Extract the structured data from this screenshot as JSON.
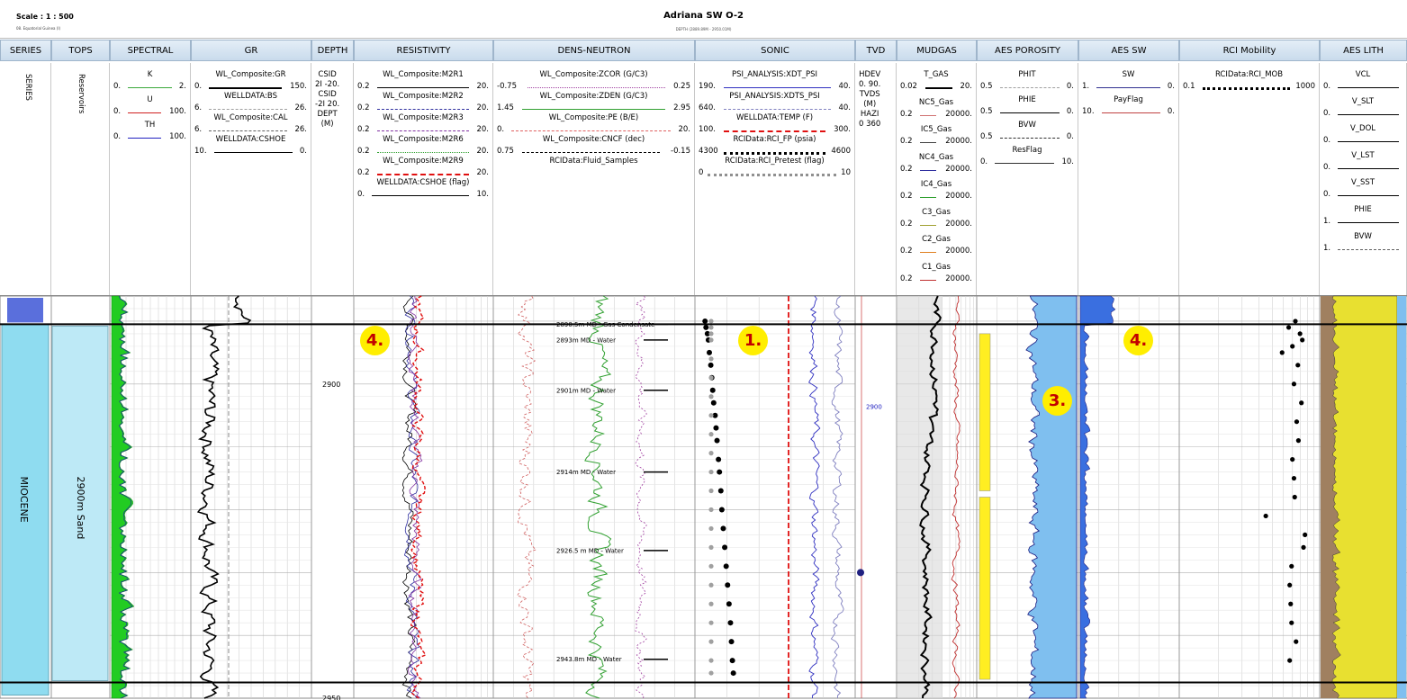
{
  "header": {
    "scale": "Scale : 1 : 500",
    "scale_sub": "08. Equatorial Guinea (I)",
    "title": "Adriana SW O-2",
    "subtitle": "DEPTH (2889.89M - 2950.01M)"
  },
  "tracks": [
    {
      "name": "SERIES"
    },
    {
      "name": "TOPS"
    },
    {
      "name": "SPECTRAL"
    },
    {
      "name": "GR"
    },
    {
      "name": "DEPTH"
    },
    {
      "name": "RESISTIVITY"
    },
    {
      "name": "DENS-NEUTRON"
    },
    {
      "name": "SONIC"
    },
    {
      "name": "TVD"
    },
    {
      "name": "MUDGAS"
    },
    {
      "name": "AES POROSITY"
    },
    {
      "name": "AES SW"
    },
    {
      "name": "RCI Mobility"
    },
    {
      "name": "AES LITH"
    }
  ],
  "legend": {
    "series_label": "SERIES",
    "tops_label": "Reservoirs",
    "spectral": [
      {
        "name": "K",
        "min": "0.",
        "max": "2.",
        "color": "#3aa83a",
        "style": "solid"
      },
      {
        "name": "U",
        "min": "0.",
        "max": "100.",
        "color": "#d02020",
        "style": "solid"
      },
      {
        "name": "TH",
        "min": "0.",
        "max": "100.",
        "color": "#2020c0",
        "style": "solid"
      }
    ],
    "gr": [
      {
        "name": "WL_Composite:GR",
        "min": "0.",
        "max": "150.",
        "color": "#000000",
        "style": "solid",
        "width": 2
      },
      {
        "name": "WELLDATA:BS",
        "min": "6.",
        "max": "26.",
        "color": "#a0a0a0",
        "style": "dashed"
      },
      {
        "name": "WL_Composite:CAL",
        "min": "6.",
        "max": "26.",
        "color": "#606060",
        "style": "dashed"
      },
      {
        "name": "WELLDATA:CSHOE",
        "min": "10.",
        "max": "0.",
        "color": "#000000",
        "style": "solid"
      }
    ],
    "depth_lines": [
      "CSID",
      "2I -20.",
      "CSID",
      "-2I 20.",
      "DEPT",
      "(M)"
    ],
    "resistivity": [
      {
        "name": "WL_Composite:M2R1",
        "min": "0.2",
        "max": "20.",
        "color": "#000000",
        "style": "solid"
      },
      {
        "name": "WL_Composite:M2R2",
        "min": "0.2",
        "max": "20.",
        "color": "#3030a0",
        "style": "dashed"
      },
      {
        "name": "WL_Composite:M2R3",
        "min": "0.2",
        "max": "20.",
        "color": "#8030a0",
        "style": "dashdot"
      },
      {
        "name": "WL_Composite:M2R6",
        "min": "0.2",
        "max": "20.",
        "color": "#30a030",
        "style": "dotted"
      },
      {
        "name": "WL_Composite:M2R9",
        "min": "0.2",
        "max": "20.",
        "color": "#e01010",
        "style": "dashed",
        "width": 2
      },
      {
        "name": "WELLDATA:CSHOE (flag)",
        "min": "0.",
        "max": "10.",
        "color": "#000000",
        "style": "solid"
      }
    ],
    "dens_neutron": [
      {
        "name": "WL_Composite:ZCOR (G/C3)",
        "min": "-0.75",
        "max": "0.25",
        "color": "#a040a0",
        "style": "dotted"
      },
      {
        "name": "WL_Composite:ZDEN (G/C3)",
        "min": "1.45",
        "max": "2.95",
        "color": "#30a030",
        "style": "solid"
      },
      {
        "name": "WL_Composite:PE (B/E)",
        "min": "0.",
        "max": "20.",
        "color": "#e06060",
        "style": "dashed"
      },
      {
        "name": "WL_Composite:CNCF (dec)",
        "min": "0.75",
        "max": "-0.15",
        "color": "#000000",
        "style": "dashed"
      },
      {
        "name": "RCIData:Fluid_Samples",
        "min": "",
        "max": "",
        "color": "#ffffff",
        "style": "none"
      }
    ],
    "sonic": [
      {
        "name": "PSI_ANALYSIS:XDT_PSI",
        "min": "190.",
        "max": "40.",
        "color": "#3030c0",
        "style": "solid"
      },
      {
        "name": "PSI_ANALYSIS:XDTS_PSI",
        "min": "640.",
        "max": "40.",
        "color": "#8080c0",
        "style": "dashed"
      },
      {
        "name": "WELLDATA:TEMP (F)",
        "min": "100.",
        "max": "300.",
        "color": "#e01010",
        "style": "dashed",
        "width": 2
      },
      {
        "name": "RCIData:RCI_FP (psia)",
        "min": "4300",
        "max": "4600",
        "color": "#000000",
        "style": "dots"
      },
      {
        "name": "RCIData:RCI_Pretest (flag)",
        "min": "0",
        "max": "10",
        "color": "#909090",
        "style": "dots"
      }
    ],
    "tvd_lines": [
      "HDEV",
      "0. 90.",
      "TVDS",
      "(M)",
      "HAZI",
      "0 360"
    ],
    "mudgas": [
      {
        "name": "T_GAS",
        "min": "0.02",
        "max": "20.",
        "color": "#000000",
        "style": "solid",
        "width": 2
      },
      {
        "name": "NC5_Gas",
        "min": "0.2",
        "max": "20000.",
        "color": "#d07070",
        "style": "solid"
      },
      {
        "name": "IC5_Gas",
        "min": "0.2",
        "max": "20000.",
        "color": "#404040",
        "style": "solid"
      },
      {
        "name": "NC4_Gas",
        "min": "0.2",
        "max": "20000.",
        "color": "#3030a0",
        "style": "solid"
      },
      {
        "name": "IC4_Gas",
        "min": "0.2",
        "max": "20000.",
        "color": "#30a030",
        "style": "solid"
      },
      {
        "name": "C3_Gas",
        "min": "0.2",
        "max": "20000.",
        "color": "#a0a030",
        "style": "solid"
      },
      {
        "name": "C2_Gas",
        "min": "0.2",
        "max": "20000.",
        "color": "#e08020",
        "style": "solid"
      },
      {
        "name": "C1_Gas",
        "min": "0.2",
        "max": "20000.",
        "color": "#c03030",
        "style": "solid"
      }
    ],
    "aes_porosity": [
      {
        "name": "PHIT",
        "min": "0.5",
        "max": "0.",
        "color": "#a0a0a0",
        "style": "dashed"
      },
      {
        "name": "PHIE",
        "min": "0.5",
        "max": "0.",
        "color": "#000000",
        "style": "solid"
      },
      {
        "name": "BVW",
        "min": "0.5",
        "max": "0.",
        "color": "#303030",
        "style": "dashed"
      },
      {
        "name": "ResFlag",
        "min": "0.",
        "max": "10.",
        "color": "#303030",
        "style": "solid"
      }
    ],
    "aes_sw": [
      {
        "name": "SW",
        "min": "1.",
        "max": "0.",
        "color": "#303090",
        "style": "solid"
      },
      {
        "name": "PayFlag",
        "min": "10.",
        "max": "0.",
        "color": "#c04040",
        "style": "solid"
      }
    ],
    "rci_mobility": [
      {
        "name": "RCIData:RCI_MOB",
        "min": "0.1",
        "max": "1000",
        "color": "#000000",
        "style": "dots"
      }
    ],
    "aes_lith": [
      {
        "name": "VCL",
        "min": "0.",
        "max": "",
        "color": "#000000",
        "style": "solid"
      },
      {
        "name": "V_SLT",
        "min": "0.",
        "max": "",
        "color": "#000000",
        "style": "solid"
      },
      {
        "name": "V_DOL",
        "min": "0.",
        "max": "",
        "color": "#000000",
        "style": "solid"
      },
      {
        "name": "V_LST",
        "min": "0.",
        "max": "",
        "color": "#000000",
        "style": "solid"
      },
      {
        "name": "V_SST",
        "min": "0.",
        "max": "",
        "color": "#000000",
        "style": "solid"
      },
      {
        "name": "PHIE",
        "min": "1.",
        "max": "",
        "color": "#000000",
        "style": "solid"
      },
      {
        "name": "BVW",
        "min": "1.",
        "max": "",
        "color": "#606060",
        "style": "dashed"
      }
    ]
  },
  "zones": {
    "series_name": "MIOCENE",
    "top_name": "2900m Sand"
  },
  "depth_labels": [
    "2900",
    "2950"
  ],
  "tvd_label": "2900",
  "annotations": [
    "1.",
    "3.",
    "4.",
    "4."
  ],
  "chart_data": {
    "type": "line",
    "title": "Adriana SW O-2",
    "ylabel": "DEPT (M)",
    "ylim": [
      2950,
      2886
    ],
    "depth_ticks": [
      2900,
      2950
    ],
    "zone_top_md": 2890.5,
    "zone_base_md": 2947.5,
    "fluid_samples": [
      {
        "md": 2890.5,
        "label": "2890.5m MD - Gas Condensate"
      },
      {
        "md": 2893,
        "label": "2893m MD - Water"
      },
      {
        "md": 2901,
        "label": "2901m MD - Water"
      },
      {
        "md": 2914,
        "label": "2914m MD - Water"
      },
      {
        "md": 2926.5,
        "label": "2926.5 m MD - Water"
      },
      {
        "md": 2943.8,
        "label": "2943.8m MD - Water"
      }
    ],
    "rci_pressure": [
      {
        "md": 2890,
        "p": 4306
      },
      {
        "md": 2891,
        "p": 4308
      },
      {
        "md": 2892,
        "p": 4311
      },
      {
        "md": 2893,
        "p": 4313
      },
      {
        "md": 2895,
        "p": 4315
      },
      {
        "md": 2897,
        "p": 4318
      },
      {
        "md": 2899,
        "p": 4320
      },
      {
        "md": 2901,
        "p": 4322
      },
      {
        "md": 2903,
        "p": 4324
      },
      {
        "md": 2905,
        "p": 4327
      },
      {
        "md": 2907,
        "p": 4329
      },
      {
        "md": 2909,
        "p": 4331
      },
      {
        "md": 2912,
        "p": 4334
      },
      {
        "md": 2914,
        "p": 4336
      },
      {
        "md": 2917,
        "p": 4339
      },
      {
        "md": 2920,
        "p": 4341
      },
      {
        "md": 2923,
        "p": 4344
      },
      {
        "md": 2926,
        "p": 4347
      },
      {
        "md": 2929,
        "p": 4350
      },
      {
        "md": 2932,
        "p": 4353
      },
      {
        "md": 2935,
        "p": 4356
      },
      {
        "md": 2938,
        "p": 4359
      },
      {
        "md": 2941,
        "p": 4361
      },
      {
        "md": 2944,
        "p": 4363
      },
      {
        "md": 2946,
        "p": 4365
      }
    ],
    "rci_pretest_md": [
      2890,
      2891,
      2892,
      2893,
      2896,
      2899,
      2902,
      2905,
      2908,
      2911,
      2914,
      2917,
      2920,
      2923,
      2926,
      2929,
      2932,
      2935,
      2938,
      2941,
      2944,
      2946
    ],
    "rci_mobility": [
      {
        "md": 2890,
        "mob": 220
      },
      {
        "md": 2891,
        "mob": 140
      },
      {
        "md": 2892,
        "mob": 300
      },
      {
        "md": 2893,
        "mob": 350
      },
      {
        "md": 2894,
        "mob": 180
      },
      {
        "md": 2895,
        "mob": 90
      },
      {
        "md": 2897,
        "mob": 260
      },
      {
        "md": 2900,
        "mob": 200
      },
      {
        "md": 2903,
        "mob": 330
      },
      {
        "md": 2906,
        "mob": 240
      },
      {
        "md": 2909,
        "mob": 270
      },
      {
        "md": 2912,
        "mob": 180
      },
      {
        "md": 2915,
        "mob": 200
      },
      {
        "md": 2918,
        "mob": 210
      },
      {
        "md": 2921,
        "mob": 30
      },
      {
        "md": 2924,
        "mob": 420
      },
      {
        "md": 2926,
        "mob": 380
      },
      {
        "md": 2929,
        "mob": 170
      },
      {
        "md": 2932,
        "mob": 150
      },
      {
        "md": 2935,
        "mob": 160
      },
      {
        "md": 2938,
        "mob": 170
      },
      {
        "md": 2941,
        "mob": 230
      },
      {
        "md": 2944,
        "mob": 150
      }
    ],
    "tvd_marker_md": 2930
  }
}
